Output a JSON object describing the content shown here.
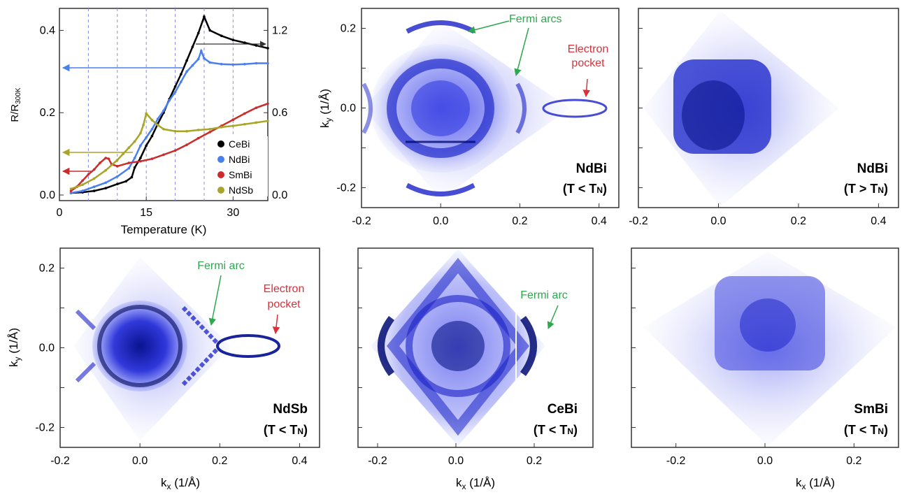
{
  "colors": {
    "CeBi": "#000000",
    "NdBi": "#4a7ff0",
    "SmBi": "#cc2b2b",
    "NdSb": "#a8a527",
    "fermi": "#2ea84e",
    "electron": "#d8323c",
    "map": "#2a2ee6",
    "grid": "#8a8ae6"
  },
  "chart_data": [
    {
      "id": "transport",
      "type": "line",
      "title": "",
      "xlabel": "Temperature (K)",
      "ylabel_main": "R/R",
      "ylabel_sub": "300K",
      "xlim": [
        0,
        36
      ],
      "ylim": [
        0,
        0.45
      ],
      "y2lim": [
        0,
        1.35
      ],
      "xticks": [
        "0",
        "15",
        "30"
      ],
      "xtick_values": [
        0,
        15,
        30
      ],
      "yticks": [
        "0.0",
        "0.2",
        "0.4"
      ],
      "ytick_values": [
        0,
        0.2,
        0.4
      ],
      "y2ticks": [
        "0.0",
        "0.6",
        "1.2"
      ],
      "y2tick_values": [
        0,
        0.6,
        1.2
      ],
      "vlines": [
        5,
        10,
        15,
        20,
        25,
        30
      ],
      "series": [
        {
          "name": "CeBi",
          "axis": "right",
          "x": [
            2,
            4,
            6,
            8,
            10,
            11.5,
            12.5,
            13,
            14,
            15,
            16,
            17,
            18,
            19,
            20,
            21,
            22,
            23,
            24,
            25,
            26,
            28,
            30,
            32,
            34,
            36
          ],
          "y": [
            0.015,
            0.02,
            0.03,
            0.05,
            0.08,
            0.1,
            0.13,
            0.2,
            0.27,
            0.36,
            0.43,
            0.52,
            0.6,
            0.7,
            0.79,
            0.88,
            0.98,
            1.08,
            1.18,
            1.3,
            1.2,
            1.16,
            1.13,
            1.11,
            1.09,
            1.07
          ]
        },
        {
          "name": "NdBi",
          "axis": "left",
          "x": [
            2,
            4,
            6,
            8,
            10,
            12,
            13,
            14,
            15,
            16,
            17,
            18,
            19,
            20,
            21,
            22,
            23,
            24,
            24.5,
            25,
            26,
            28,
            30,
            32,
            34,
            36
          ],
          "y": [
            0.005,
            0.01,
            0.02,
            0.03,
            0.045,
            0.065,
            0.09,
            0.12,
            0.14,
            0.16,
            0.185,
            0.205,
            0.23,
            0.25,
            0.275,
            0.3,
            0.315,
            0.33,
            0.35,
            0.332,
            0.322,
            0.318,
            0.317,
            0.318,
            0.32,
            0.32
          ]
        },
        {
          "name": "SmBi",
          "axis": "left",
          "x": [
            2,
            3,
            4,
            5,
            6,
            7,
            8,
            8.5,
            9,
            10,
            12,
            14,
            16,
            18,
            20,
            22,
            24,
            26,
            28,
            30,
            32,
            34,
            36
          ],
          "y": [
            0.01,
            0.02,
            0.035,
            0.05,
            0.062,
            0.078,
            0.09,
            0.088,
            0.075,
            0.07,
            0.078,
            0.082,
            0.088,
            0.098,
            0.108,
            0.122,
            0.138,
            0.153,
            0.168,
            0.183,
            0.198,
            0.212,
            0.222
          ]
        },
        {
          "name": "NdSb",
          "axis": "left",
          "x": [
            2,
            4,
            6,
            8,
            10,
            11,
            12,
            13,
            14,
            14.5,
            15,
            16,
            17,
            18,
            20,
            22,
            24,
            26,
            28,
            30,
            32,
            34,
            36
          ],
          "y": [
            0.015,
            0.025,
            0.04,
            0.06,
            0.085,
            0.1,
            0.115,
            0.13,
            0.15,
            0.17,
            0.198,
            0.182,
            0.17,
            0.16,
            0.155,
            0.155,
            0.158,
            0.16,
            0.165,
            0.168,
            0.172,
            0.176,
            0.18
          ]
        }
      ],
      "legend": [
        "CeBi",
        "NdBi",
        "SmBi",
        "NdSb"
      ],
      "legend_position": "bottom-right",
      "axis_arrows": [
        {
          "series": "CeBi",
          "points_to": "right",
          "at_y": 1.08
        },
        {
          "series": "NdBi",
          "points_to": "left",
          "at_y": 0.31
        },
        {
          "series": "NdSb",
          "points_to": "left",
          "at_y": 0.105
        },
        {
          "series": "SmBi",
          "points_to": "left",
          "at_y": 0.06
        }
      ]
    },
    {
      "id": "ndbi-low",
      "type": "heatmap",
      "material": "NdBi",
      "condition": "(T < T",
      "condition_sub": "N",
      "condition_end": ")",
      "xlim": [
        -0.2,
        0.45
      ],
      "ylim": [
        -0.25,
        0.25
      ],
      "xticks": [
        "-0.2",
        "0.0",
        "0.2",
        "0.4"
      ],
      "yticks": [
        "0.2",
        "0.0",
        "-0.2"
      ],
      "ylabel": "k",
      "ylabel_sub": "y",
      "ylabel_unit": " (1/Å)",
      "annotations": [
        {
          "text": "Fermi arcs",
          "color": "fermi"
        },
        {
          "text": "Electron",
          "text2": "pocket",
          "color": "electron"
        }
      ]
    },
    {
      "id": "ndbi-high",
      "type": "heatmap",
      "material": "NdBi",
      "condition": "(T > T",
      "condition_sub": "N",
      "condition_end": ")",
      "xlim": [
        -0.2,
        0.45
      ],
      "ylim": [
        -0.25,
        0.25
      ],
      "xticks": [
        "-0.2",
        "0.0",
        "0.2",
        "0.4"
      ]
    },
    {
      "id": "ndsb-low",
      "type": "heatmap",
      "material": "NdSb",
      "condition": "(T < T",
      "condition_sub": "N",
      "condition_end": ")",
      "xlim": [
        -0.2,
        0.45
      ],
      "ylim": [
        -0.25,
        0.25
      ],
      "xticks": [
        "-0.2",
        "0.0",
        "0.2",
        "0.4"
      ],
      "yticks": [
        "0.2",
        "0.0",
        "-0.2"
      ],
      "ylabel": "k",
      "ylabel_sub": "y",
      "ylabel_unit": " (1/Å)",
      "xlabel": "k",
      "xlabel_sub": "x",
      "xlabel_unit": " (1/Å)",
      "annotations": [
        {
          "text": "Fermi arc",
          "color": "fermi"
        },
        {
          "text": "Electron",
          "text2": "pocket",
          "color": "electron"
        }
      ]
    },
    {
      "id": "cebi-low",
      "type": "heatmap",
      "material": "CeBi",
      "condition": "(T < T",
      "condition_sub": "N",
      "condition_end": ")",
      "xlim": [
        -0.25,
        0.35
      ],
      "ylim": [
        -0.25,
        0.25
      ],
      "xticks": [
        "-0.2",
        "0.0",
        "0.2"
      ],
      "xlabel": "k",
      "xlabel_sub": "x",
      "xlabel_unit": " (1/Å)",
      "annotations": [
        {
          "text": "Fermi arc",
          "color": "fermi"
        }
      ]
    },
    {
      "id": "smbi-low",
      "type": "heatmap",
      "material": "SmBi",
      "condition": "(T < T",
      "condition_sub": "N",
      "condition_end": ")",
      "xlim": [
        -0.3,
        0.3
      ],
      "ylim": [
        -0.25,
        0.25
      ],
      "xticks": [
        "-0.2",
        "0.0",
        "0.2"
      ],
      "xlabel": "k",
      "xlabel_sub": "x",
      "xlabel_unit": " (1/Å)"
    }
  ]
}
